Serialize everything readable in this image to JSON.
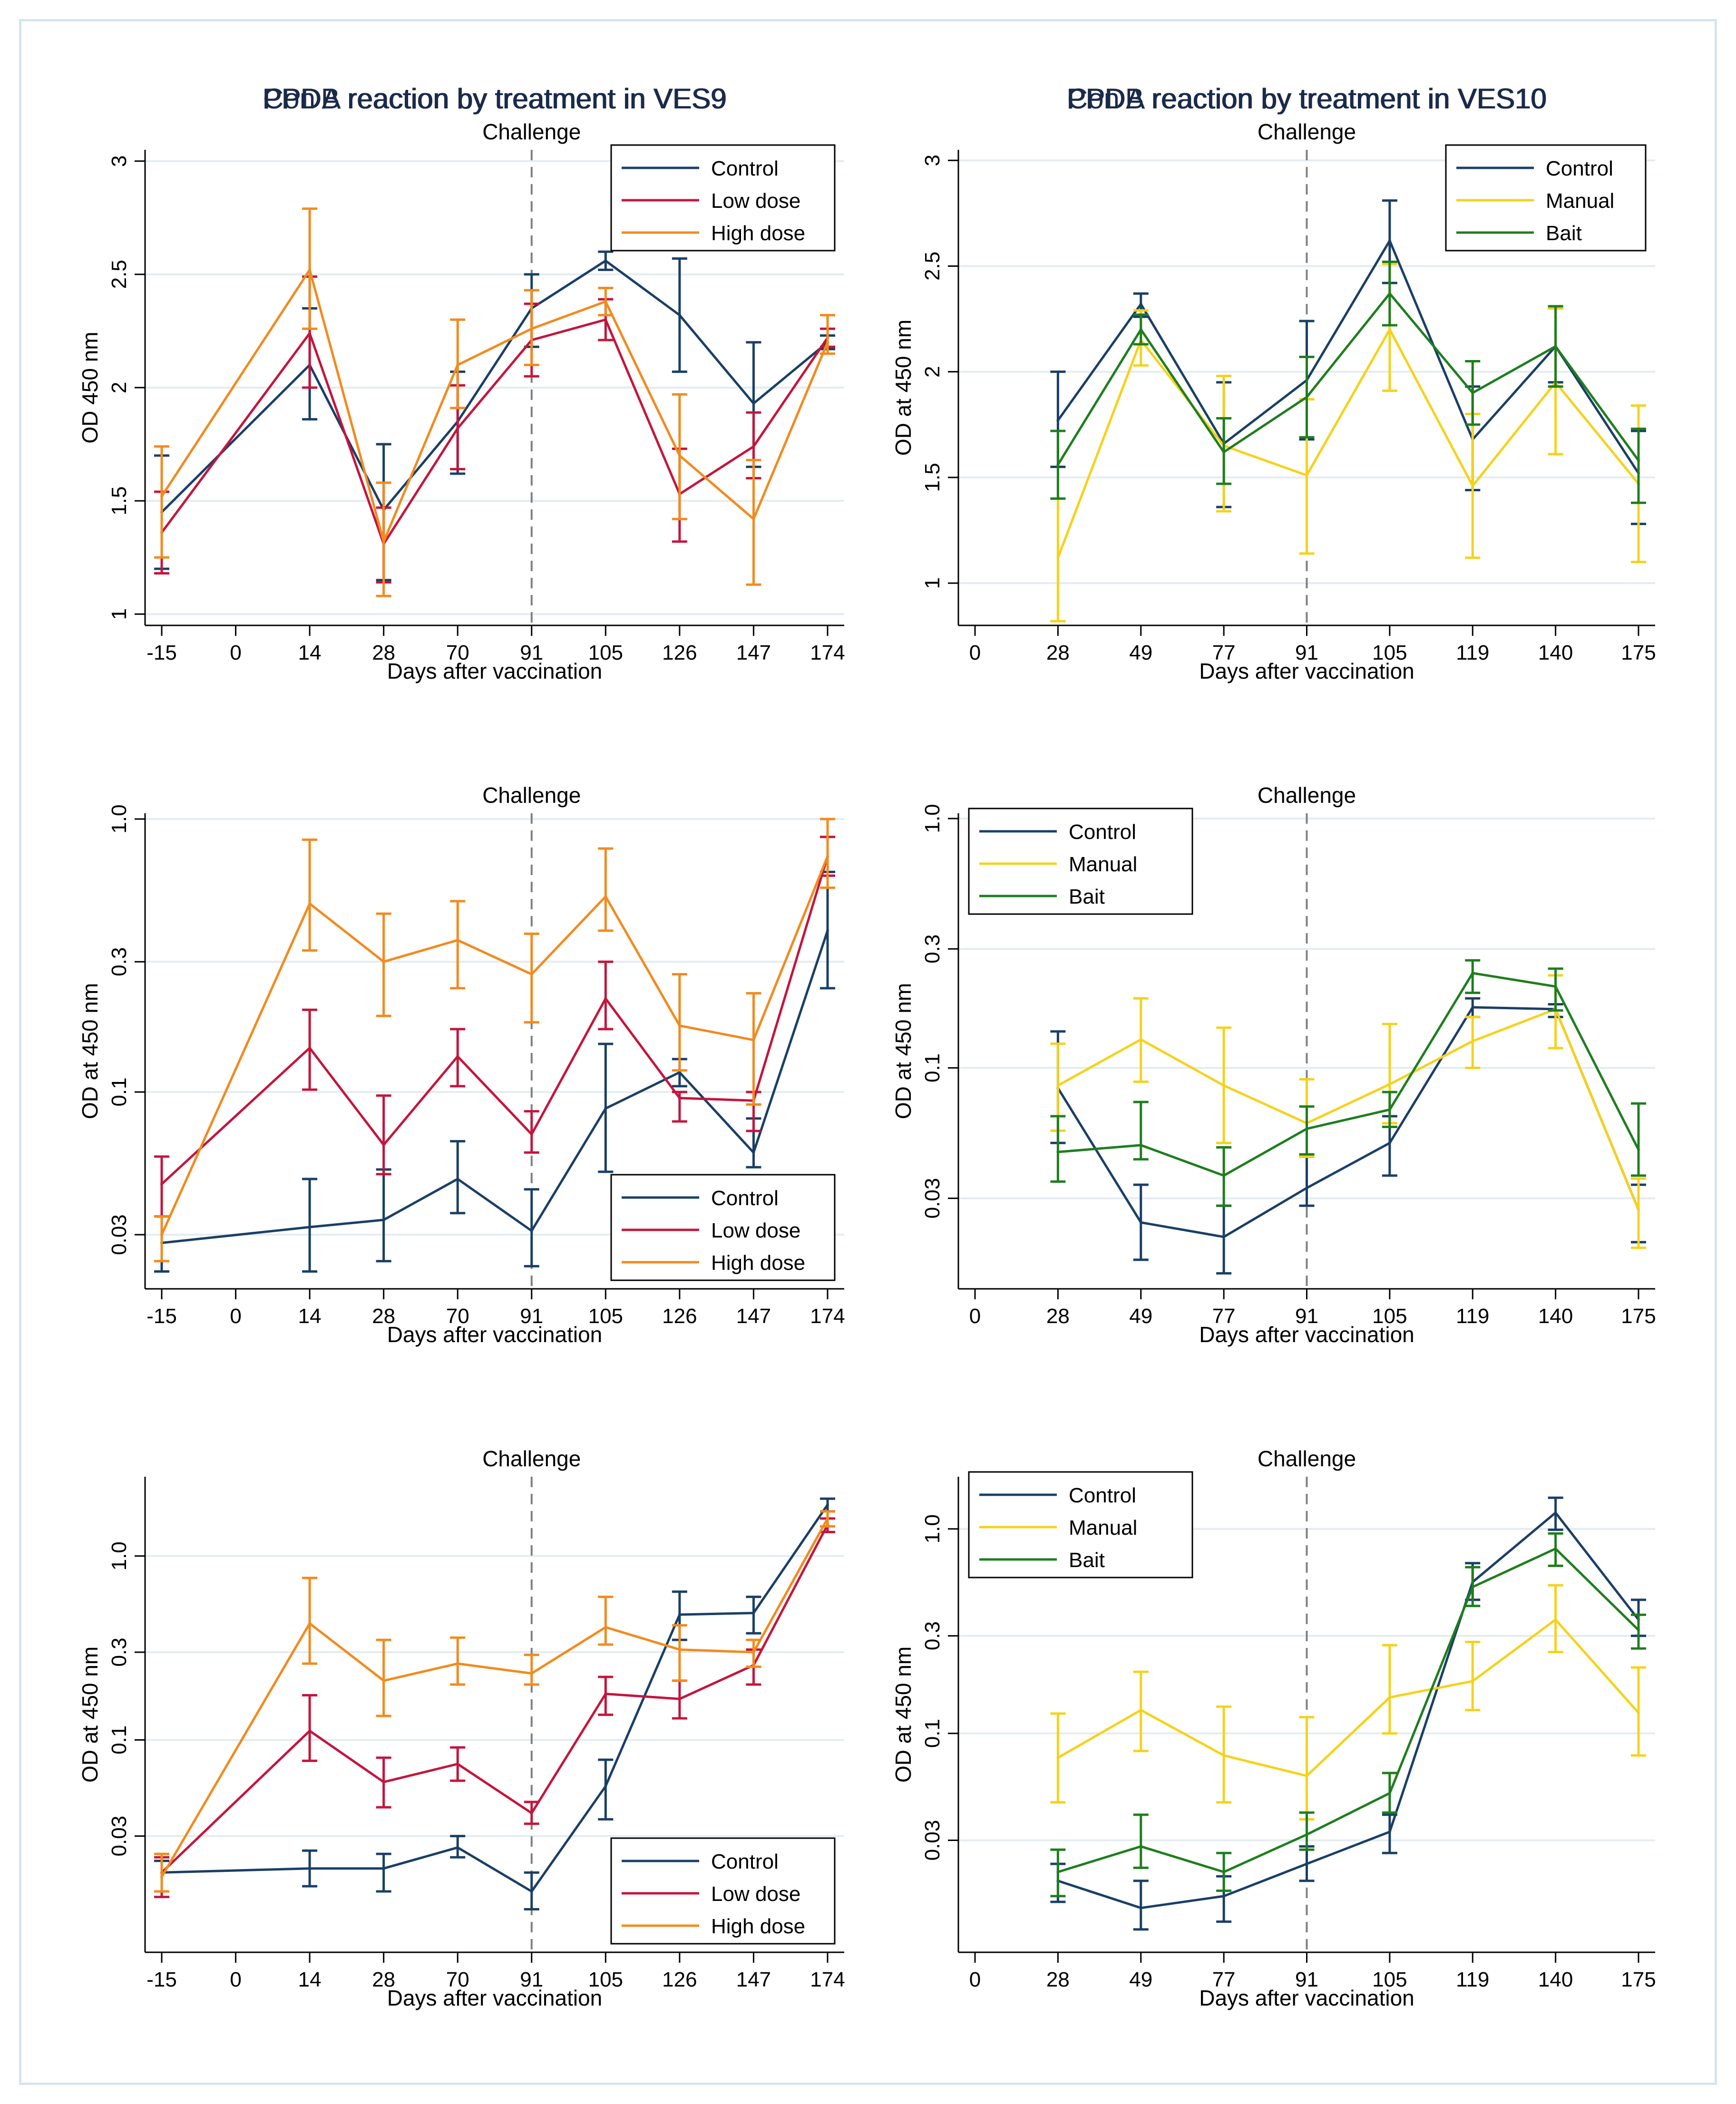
{
  "figure": {
    "challenge_label": "Challenge",
    "xlabel": "Days after vaccination",
    "colors": {
      "control": "#1a3f66",
      "low_dose": "#c4153c",
      "high_dose": "#f28a1e",
      "manual": "#f5d21a",
      "bait": "#1e7e1e",
      "title": "#1a2a4a",
      "grid": "#e3ecf1",
      "axis": "#000000",
      "challenge_line": "#808080"
    }
  },
  "chart_data": [
    {
      "id": "cona-ves9",
      "type": "line",
      "title": "Con A reaction by treatment in VES9",
      "xlabel": "Days after vaccination",
      "ylabel": "OD 450 nm",
      "yscale": "linear",
      "ylim": [
        0.95,
        3.05
      ],
      "yticks": [
        1,
        1.5,
        2,
        2.5,
        3
      ],
      "ytick_labels": [
        "1",
        "1.5",
        "2",
        "2.5",
        "3"
      ],
      "xtick_labels": [
        "-15",
        "0",
        "14",
        "28",
        "70",
        "91",
        "105",
        "126",
        "147",
        "174"
      ],
      "x_index": [
        0,
        2,
        3,
        4,
        5,
        6,
        7,
        8,
        9
      ],
      "challenge_index": 5,
      "legend_position": "top-right",
      "series": [
        {
          "name": "Control",
          "color_key": "control",
          "values": [
            1.45,
            2.1,
            1.46,
            1.85,
            2.35,
            2.56,
            2.32,
            1.93,
            2.2
          ],
          "lo": [
            1.2,
            1.86,
            1.15,
            1.62,
            2.18,
            2.52,
            2.07,
            1.65,
            2.17
          ],
          "hi": [
            1.7,
            2.35,
            1.75,
            2.07,
            2.5,
            2.6,
            2.57,
            2.2,
            2.23
          ]
        },
        {
          "name": "Low dose",
          "color_key": "low_dose",
          "values": [
            1.36,
            2.24,
            1.31,
            1.82,
            2.21,
            2.3,
            1.53,
            1.74,
            2.22
          ],
          "lo": [
            1.18,
            2.0,
            1.14,
            1.64,
            2.05,
            2.21,
            1.32,
            1.6,
            2.18
          ],
          "hi": [
            1.54,
            2.49,
            1.47,
            2.01,
            2.37,
            2.39,
            1.73,
            1.89,
            2.26
          ]
        },
        {
          "name": "High dose",
          "color_key": "high_dose",
          "values": [
            1.52,
            2.52,
            1.32,
            2.1,
            2.26,
            2.38,
            1.7,
            1.42,
            2.2
          ],
          "lo": [
            1.25,
            2.26,
            1.08,
            1.91,
            2.1,
            2.32,
            1.42,
            1.13,
            2.15
          ],
          "hi": [
            1.74,
            2.79,
            1.58,
            2.3,
            2.43,
            2.44,
            1.97,
            1.68,
            2.32
          ]
        }
      ]
    },
    {
      "id": "cona-ves10",
      "type": "line",
      "title": "Con A reaction by treatment in VES10",
      "xlabel": "Days after vaccination",
      "ylabel": "OD at 450 nm",
      "yscale": "linear",
      "ylim": [
        0.8,
        3.05
      ],
      "yticks": [
        1,
        1.5,
        2,
        2.5,
        3
      ],
      "ytick_labels": [
        "1",
        "1.5",
        "2",
        "2.5",
        "3"
      ],
      "xtick_labels": [
        "0",
        "28",
        "49",
        "77",
        "91",
        "105",
        "119",
        "140",
        "175"
      ],
      "x_index": [
        1,
        2,
        3,
        4,
        5,
        6,
        7,
        8
      ],
      "challenge_index": 4,
      "legend_position": "top-right",
      "series": [
        {
          "name": "Control",
          "color_key": "control",
          "values": [
            1.77,
            2.32,
            1.66,
            1.96,
            2.62,
            1.68,
            2.12,
            1.52
          ],
          "lo": [
            1.55,
            2.26,
            1.36,
            1.68,
            2.42,
            1.44,
            1.95,
            1.28
          ],
          "hi": [
            2.0,
            2.37,
            1.95,
            2.24,
            2.81,
            1.93,
            2.3,
            1.72
          ]
        },
        {
          "name": "Manual",
          "color_key": "manual",
          "values": [
            1.12,
            2.15,
            1.65,
            1.51,
            2.2,
            1.46,
            1.95,
            1.47
          ],
          "lo": [
            0.82,
            2.03,
            1.34,
            1.14,
            1.91,
            1.12,
            1.61,
            1.1
          ],
          "hi": [
            1.4,
            2.29,
            1.98,
            1.87,
            2.51,
            1.8,
            2.3,
            1.84
          ]
        },
        {
          "name": "Bait",
          "color_key": "bait",
          "values": [
            1.56,
            2.2,
            1.62,
            1.88,
            2.37,
            1.9,
            2.12,
            1.58
          ],
          "lo": [
            1.4,
            2.13,
            1.47,
            1.69,
            2.22,
            1.75,
            1.93,
            1.38
          ],
          "hi": [
            1.72,
            2.27,
            1.78,
            2.07,
            2.52,
            2.05,
            2.31,
            1.73
          ]
        }
      ]
    },
    {
      "id": "ppda-ves9",
      "type": "line",
      "title": "PPDA reaction by treatment in VES9",
      "xlabel": "Days after vaccination",
      "ylabel": "OD at 450 nm",
      "yscale": "log",
      "ylim": [
        0.019,
        1.05
      ],
      "yticks": [
        0.03,
        0.1,
        0.3,
        1.0
      ],
      "ytick_labels": [
        "0.03",
        "0.1",
        "0.3",
        "1.0"
      ],
      "xtick_labels": [
        "-15",
        "0",
        "14",
        "28",
        "70",
        "91",
        "105",
        "126",
        "147",
        "174"
      ],
      "x_index": [
        0,
        2,
        3,
        4,
        5,
        6,
        7,
        8,
        9
      ],
      "challenge_index": 5,
      "legend_position": "bottom-right",
      "series": [
        {
          "name": "Control",
          "color_key": "control",
          "values": [
            0.028,
            0.032,
            0.034,
            0.048,
            0.031,
            0.087,
            0.118,
            0.06,
            0.39
          ],
          "lo": [
            0.022,
            0.022,
            0.024,
            0.036,
            0.023,
            0.051,
            0.105,
            0.053,
            0.24
          ],
          "hi": [
            0.035,
            0.048,
            0.052,
            0.066,
            0.044,
            0.15,
            0.132,
            0.08,
            0.64
          ]
        },
        {
          "name": "Low dose",
          "color_key": "low_dose",
          "values": [
            0.046,
            0.145,
            0.064,
            0.135,
            0.07,
            0.22,
            0.095,
            0.093,
            0.73
          ],
          "lo": [
            0.035,
            0.102,
            0.05,
            0.105,
            0.06,
            0.17,
            0.078,
            0.072,
            0.62
          ],
          "hi": [
            0.058,
            0.2,
            0.097,
            0.17,
            0.085,
            0.3,
            0.1,
            0.1,
            0.86
          ]
        },
        {
          "name": "High dose",
          "color_key": "high_dose",
          "values": [
            0.03,
            0.49,
            0.3,
            0.36,
            0.27,
            0.52,
            0.175,
            0.155,
            0.73
          ],
          "lo": [
            0.024,
            0.33,
            0.19,
            0.24,
            0.18,
            0.39,
            0.12,
            0.09,
            0.56
          ],
          "hi": [
            0.035,
            0.84,
            0.45,
            0.5,
            0.38,
            0.78,
            0.27,
            0.23,
            1.0
          ]
        }
      ]
    },
    {
      "id": "ppda-ves10",
      "type": "line",
      "title": "PPDA reaction by treatment in VES10",
      "xlabel": "Days after vaccination",
      "ylabel": "OD at 450 nm",
      "yscale": "log",
      "ylim": [
        0.013,
        1.05
      ],
      "yticks": [
        0.03,
        0.1,
        0.3,
        1.0
      ],
      "ytick_labels": [
        "0.03",
        "0.1",
        "0.3",
        "1.0"
      ],
      "xtick_labels": [
        "0",
        "28",
        "49",
        "77",
        "91",
        "105",
        "119",
        "140",
        "175"
      ],
      "x_index": [
        1,
        2,
        3,
        4,
        5,
        6,
        7,
        8
      ],
      "challenge_index": 4,
      "legend_position": "top-left",
      "series": [
        {
          "name": "Control",
          "color_key": "control",
          "values": [
            0.083,
            0.024,
            0.021,
            0.033,
            0.05,
            0.175,
            0.172,
            0.027
          ],
          "lo": [
            0.05,
            0.017,
            0.015,
            0.028,
            0.037,
            0.16,
            0.16,
            0.02
          ],
          "hi": [
            0.14,
            0.034,
            0.028,
            0.044,
            0.064,
            0.19,
            0.18,
            0.034
          ]
        },
        {
          "name": "Manual",
          "color_key": "manual",
          "values": [
            0.085,
            0.13,
            0.085,
            0.06,
            0.086,
            0.128,
            0.172,
            0.027
          ],
          "lo": [
            0.056,
            0.088,
            0.05,
            0.044,
            0.06,
            0.1,
            0.12,
            0.019
          ],
          "hi": [
            0.125,
            0.19,
            0.145,
            0.09,
            0.15,
            0.16,
            0.235,
            0.036
          ]
        },
        {
          "name": "Bait",
          "color_key": "bait",
          "values": [
            0.046,
            0.049,
            0.037,
            0.057,
            0.068,
            0.24,
            0.212,
            0.047
          ],
          "lo": [
            0.035,
            0.043,
            0.028,
            0.045,
            0.058,
            0.2,
            0.17,
            0.037
          ],
          "hi": [
            0.064,
            0.073,
            0.048,
            0.07,
            0.08,
            0.27,
            0.25,
            0.072
          ]
        }
      ]
    },
    {
      "id": "ppdb-ves9",
      "type": "line",
      "title": "PPDB reaction by treatment in VES9",
      "xlabel": "Days after vaccination",
      "ylabel": "OD at 450 nm",
      "yscale": "log",
      "ylim": [
        0.007,
        2.7
      ],
      "yticks": [
        0.03,
        0.1,
        0.3,
        1.0
      ],
      "ytick_labels": [
        "0.03",
        "0.1",
        "0.3",
        "1.0"
      ],
      "xtick_labels": [
        "-15",
        "0",
        "14",
        "28",
        "70",
        "91",
        "105",
        "126",
        "147",
        "174"
      ],
      "x_index": [
        0,
        2,
        3,
        4,
        5,
        6,
        7,
        8,
        9
      ],
      "challenge_index": 5,
      "legend_position": "bottom-right",
      "series": [
        {
          "name": "Control",
          "color_key": "control",
          "values": [
            0.019,
            0.02,
            0.02,
            0.026,
            0.015,
            0.056,
            0.48,
            0.49,
            1.9
          ],
          "lo": [
            0.015,
            0.016,
            0.015,
            0.023,
            0.012,
            0.037,
            0.35,
            0.38,
            1.75
          ],
          "hi": [
            0.022,
            0.025,
            0.024,
            0.03,
            0.019,
            0.078,
            0.64,
            0.6,
            2.05
          ]
        },
        {
          "name": "Low dose",
          "color_key": "low_dose",
          "values": [
            0.019,
            0.112,
            0.059,
            0.074,
            0.04,
            0.178,
            0.167,
            0.255,
            1.48
          ],
          "lo": [
            0.014,
            0.077,
            0.043,
            0.06,
            0.035,
            0.137,
            0.131,
            0.2,
            1.35
          ],
          "hi": [
            0.023,
            0.175,
            0.08,
            0.091,
            0.046,
            0.22,
            0.21,
            0.31,
            1.6
          ]
        },
        {
          "name": "High dose",
          "color_key": "high_dose",
          "values": [
            0.018,
            0.43,
            0.21,
            0.26,
            0.23,
            0.41,
            0.31,
            0.3,
            1.6
          ],
          "lo": [
            0.015,
            0.26,
            0.135,
            0.2,
            0.2,
            0.33,
            0.21,
            0.25,
            1.45
          ],
          "hi": [
            0.024,
            0.76,
            0.35,
            0.36,
            0.29,
            0.6,
            0.42,
            0.35,
            1.75
          ]
        }
      ]
    },
    {
      "id": "ppdb-ves10",
      "type": "line",
      "title": "PPDB reaction by treatment in VES10",
      "xlabel": "Days after vaccination",
      "ylabel": "OD at 450 nm",
      "yscale": "log",
      "ylim": [
        0.0085,
        1.8
      ],
      "yticks": [
        0.03,
        0.1,
        0.3,
        1.0
      ],
      "ytick_labels": [
        "0.03",
        "0.1",
        "0.3",
        "1.0"
      ],
      "xtick_labels": [
        "0",
        "28",
        "49",
        "77",
        "91",
        "105",
        "119",
        "140",
        "175"
      ],
      "x_index": [
        1,
        2,
        3,
        4,
        5,
        6,
        7,
        8
      ],
      "challenge_index": 4,
      "legend_position": "top-left",
      "series": [
        {
          "name": "Control",
          "color_key": "control",
          "values": [
            0.019,
            0.014,
            0.016,
            0.023,
            0.033,
            0.55,
            1.2,
            0.36
          ],
          "lo": [
            0.015,
            0.011,
            0.012,
            0.019,
            0.026,
            0.45,
            0.99,
            0.3
          ],
          "hi": [
            0.023,
            0.019,
            0.02,
            0.028,
            0.04,
            0.68,
            1.42,
            0.45
          ]
        },
        {
          "name": "Manual",
          "color_key": "manual",
          "values": [
            0.076,
            0.13,
            0.078,
            0.062,
            0.15,
            0.18,
            0.36,
            0.126
          ],
          "lo": [
            0.046,
            0.082,
            0.046,
            0.038,
            0.1,
            0.13,
            0.25,
            0.078
          ],
          "hi": [
            0.125,
            0.2,
            0.135,
            0.12,
            0.27,
            0.28,
            0.53,
            0.21
          ]
        },
        {
          "name": "Bait",
          "color_key": "bait",
          "values": [
            0.021,
            0.028,
            0.021,
            0.032,
            0.051,
            0.52,
            0.8,
            0.32
          ],
          "lo": [
            0.016,
            0.022,
            0.017,
            0.027,
            0.041,
            0.42,
            0.66,
            0.26
          ],
          "hi": [
            0.027,
            0.04,
            0.026,
            0.041,
            0.064,
            0.65,
            0.95,
            0.38
          ]
        }
      ]
    }
  ]
}
